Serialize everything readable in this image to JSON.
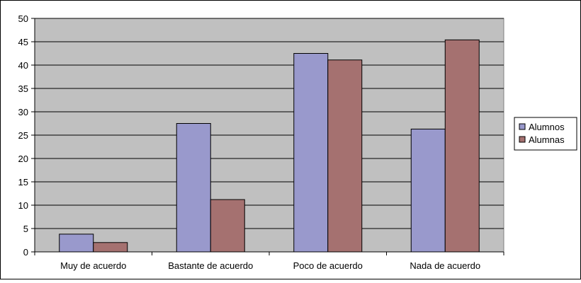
{
  "chart_data": {
    "type": "bar",
    "categories": [
      "Muy de acuerdo",
      "Bastante de acuerdo",
      "Poco de acuerdo",
      "Nada de acuerdo"
    ],
    "series": [
      {
        "name": "Alumnos",
        "values": [
          3.8,
          27.5,
          42.5,
          26.3
        ]
      },
      {
        "name": "Alumnas",
        "values": [
          2.0,
          11.2,
          41.1,
          45.4
        ]
      }
    ],
    "ylim": [
      0,
      50
    ],
    "yticks": [
      0,
      5,
      10,
      15,
      20,
      25,
      30,
      35,
      40,
      45,
      50
    ],
    "grid": true,
    "legend_position": "right",
    "colors": {
      "Alumnos": "#9999cc",
      "Alumnas": "#a57170",
      "plot_background": "#c0c0c0"
    }
  }
}
